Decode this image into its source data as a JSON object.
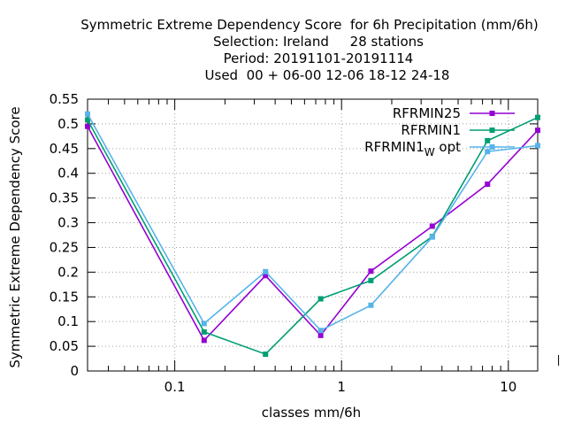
{
  "chart_data": {
    "type": "line",
    "title_lines": [
      "Symmetric Extreme Dependency Score  for 6h Precipitation (mm/6h)",
      "Selection: Ireland     28 stations",
      "Period: 20191101-20191114",
      "Used  00 + 06-00 12-06 18-12 24-18"
    ],
    "xlabel": "classes mm/6h",
    "ylabel": "Symmetric Extreme Dependency Score",
    "x_scale": "log",
    "xlim": [
      0.03,
      15
    ],
    "ylim": [
      0,
      0.55
    ],
    "x_ticks": [
      {
        "value": 0.1,
        "label": "0.1"
      },
      {
        "value": 1,
        "label": "1"
      },
      {
        "value": 10,
        "label": "10"
      }
    ],
    "y_ticks": [
      {
        "value": 0,
        "label": "0"
      },
      {
        "value": 0.05,
        "label": "0.05"
      },
      {
        "value": 0.1,
        "label": "0.1"
      },
      {
        "value": 0.15,
        "label": "0.15"
      },
      {
        "value": 0.2,
        "label": "0.2"
      },
      {
        "value": 0.25,
        "label": "0.25"
      },
      {
        "value": 0.3,
        "label": "0.3"
      },
      {
        "value": 0.35,
        "label": "0.35"
      },
      {
        "value": 0.4,
        "label": "0.4"
      },
      {
        "value": 0.45,
        "label": "0.45"
      },
      {
        "value": 0.5,
        "label": "0.5"
      },
      {
        "value": 0.55,
        "label": "0.55"
      }
    ],
    "grid": true,
    "legend_position": "top-right",
    "x": [
      0.03,
      0.15,
      0.35,
      0.75,
      1.5,
      3.5,
      7.5,
      15
    ],
    "series": [
      {
        "name": "RFRMIN25",
        "name_sub": "",
        "name_suffix": "",
        "color": "#9400d3",
        "values": [
          0.495,
          0.062,
          0.193,
          0.072,
          0.202,
          0.293,
          0.378,
          0.487
        ]
      },
      {
        "name": "RFRMIN1",
        "name_sub": "",
        "name_suffix": "",
        "color": "#009e73",
        "values": [
          0.508,
          0.079,
          0.034,
          0.146,
          0.183,
          0.272,
          0.466,
          0.513
        ]
      },
      {
        "name": "RFRMIN1",
        "name_sub": "W",
        "name_suffix": " opt",
        "color": "#56b4e9",
        "values": [
          0.52,
          0.096,
          0.201,
          0.082,
          0.133,
          0.271,
          0.444,
          0.456
        ]
      }
    ]
  }
}
